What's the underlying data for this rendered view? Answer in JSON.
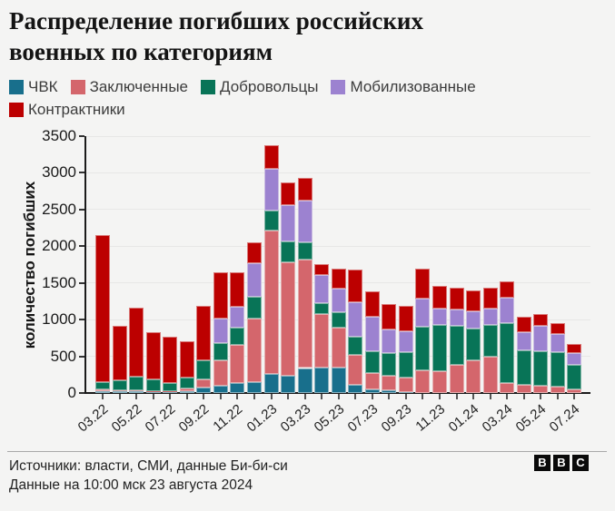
{
  "page": {
    "background": "#f4f4f3"
  },
  "header": {
    "title_lines": [
      "Распределение погибших российских",
      "военных по категориям"
    ]
  },
  "chart_data": {
    "type": "bar",
    "subtype": "stacked-vertical",
    "title": "Распределение погибших российских военных по категориям",
    "xlabel": "",
    "ylabel": "количество погибших",
    "ylim": [
      0,
      3500
    ],
    "ytick_step": 500,
    "grid": "horizontal",
    "legend_position": "top",
    "legend_wrap_after": 4,
    "x_label_every": 2,
    "categories": [
      "03.22",
      "04.22",
      "05.22",
      "06.22",
      "07.22",
      "08.22",
      "09.22",
      "10.22",
      "11.22",
      "12.22",
      "01.23",
      "02.23",
      "03.23",
      "04.23",
      "05.23",
      "06.23",
      "07.23",
      "08.23",
      "09.23",
      "10.23",
      "11.23",
      "12.23",
      "01.24",
      "02.24",
      "03.24",
      "04.24",
      "05.24",
      "06.24",
      "07.24"
    ],
    "series": [
      {
        "key": "pmc",
        "name": "ЧВК",
        "color": "#186f8c",
        "values": [
          30,
          25,
          25,
          25,
          20,
          30,
          70,
          100,
          130,
          150,
          260,
          240,
          340,
          350,
          350,
          115,
          50,
          35,
          10,
          0,
          0,
          0,
          0,
          0,
          0,
          0,
          0,
          0,
          0
        ]
      },
      {
        "key": "prisoners",
        "name": "Заключенные",
        "color": "#d4666c",
        "values": [
          15,
          10,
          10,
          5,
          10,
          30,
          120,
          345,
          530,
          860,
          1955,
          1545,
          1480,
          730,
          545,
          410,
          225,
          205,
          200,
          310,
          300,
          380,
          440,
          500,
          135,
          115,
          95,
          85,
          45
        ]
      },
      {
        "key": "volunteers",
        "name": "Добровольцы",
        "color": "#087457",
        "values": [
          105,
          140,
          185,
          150,
          110,
          150,
          255,
          240,
          225,
          305,
          265,
          285,
          230,
          140,
          205,
          245,
          290,
          300,
          345,
          590,
          630,
          530,
          435,
          430,
          815,
          470,
          470,
          475,
          335
        ]
      },
      {
        "key": "mobilized",
        "name": "Мобилизованные",
        "color": "#9c82d0",
        "values": [
          0,
          0,
          0,
          0,
          0,
          0,
          0,
          330,
          285,
          450,
          570,
          490,
          570,
          390,
          325,
          470,
          470,
          330,
          285,
          390,
          225,
          225,
          240,
          225,
          345,
          245,
          345,
          245,
          170
        ]
      },
      {
        "key": "contract",
        "name": "Контрактники",
        "color": "#bc0000",
        "values": [
          2000,
          740,
          945,
          650,
          625,
          490,
          745,
          630,
          470,
          290,
          325,
          315,
          305,
          145,
          265,
          440,
          350,
          345,
          350,
          410,
          305,
          305,
          285,
          280,
          225,
          205,
          165,
          150,
          120
        ]
      }
    ]
  },
  "footer": {
    "source_line": "Источники: власти, СМИ, данные Би-би-си",
    "updated_line": "Данные на 10:00 мск 23 августа 2024",
    "logo_letters": [
      "B",
      "B",
      "C"
    ]
  }
}
